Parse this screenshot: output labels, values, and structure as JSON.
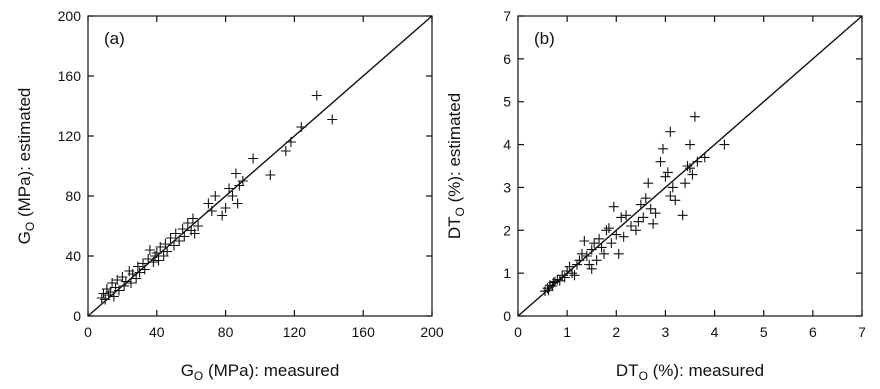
{
  "chart_data": [
    {
      "type": "scatter",
      "panel_label": "(a)",
      "xlabel": "G",
      "xlabel_sub": "O",
      "xlabel_rest": " (MPa): measured",
      "ylabel": "G",
      "ylabel_sub": "O",
      "ylabel_rest": " (MPa): estimated",
      "xlim": [
        0,
        200
      ],
      "ylim": [
        0,
        200
      ],
      "xticks": [
        "0",
        "40",
        "80",
        "120",
        "160",
        "200"
      ],
      "yticks": [
        "0",
        "40",
        "80",
        "120",
        "160",
        "200"
      ],
      "reference_line": "y = x",
      "grid": false,
      "series": [
        {
          "marker": "+",
          "points": [
            [
              8,
              12
            ],
            [
              9,
              15
            ],
            [
              10,
              11
            ],
            [
              11,
              18
            ],
            [
              12,
              14
            ],
            [
              13,
              16
            ],
            [
              14,
              22
            ],
            [
              15,
              13
            ],
            [
              16,
              19
            ],
            [
              17,
              24
            ],
            [
              18,
              17
            ],
            [
              20,
              26
            ],
            [
              21,
              20
            ],
            [
              22,
              23
            ],
            [
              24,
              30
            ],
            [
              25,
              22
            ],
            [
              26,
              28
            ],
            [
              28,
              25
            ],
            [
              29,
              33
            ],
            [
              30,
              29
            ],
            [
              32,
              35
            ],
            [
              33,
              31
            ],
            [
              35,
              38
            ],
            [
              36,
              44
            ],
            [
              38,
              36
            ],
            [
              39,
              40
            ],
            [
              40,
              42
            ],
            [
              41,
              37
            ],
            [
              42,
              46
            ],
            [
              44,
              40
            ],
            [
              45,
              48
            ],
            [
              46,
              43
            ],
            [
              48,
              52
            ],
            [
              50,
              47
            ],
            [
              51,
              55
            ],
            [
              53,
              50
            ],
            [
              55,
              58
            ],
            [
              56,
              53
            ],
            [
              58,
              62
            ],
            [
              60,
              57
            ],
            [
              61,
              65
            ],
            [
              62,
              55
            ],
            [
              64,
              60
            ],
            [
              70,
              75
            ],
            [
              72,
              70
            ],
            [
              74,
              80
            ],
            [
              78,
              67
            ],
            [
              80,
              72
            ],
            [
              82,
              85
            ],
            [
              84,
              80
            ],
            [
              86,
              95
            ],
            [
              87,
              75
            ],
            [
              88,
              87
            ],
            [
              90,
              90
            ],
            [
              96,
              105
            ],
            [
              106,
              94
            ],
            [
              115,
              110
            ],
            [
              118,
              116
            ],
            [
              124,
              126
            ],
            [
              133,
              147
            ],
            [
              142,
              131
            ]
          ]
        }
      ]
    },
    {
      "type": "scatter",
      "panel_label": "(b)",
      "xlabel": "DT",
      "xlabel_sub": "O",
      "xlabel_rest": " (%): measured",
      "ylabel": "DT",
      "ylabel_sub": "O",
      "ylabel_rest": " (%): estimated",
      "xlim": [
        0,
        7
      ],
      "ylim": [
        0,
        7
      ],
      "xticks": [
        "0",
        "1",
        "2",
        "3",
        "4",
        "5",
        "6",
        "7"
      ],
      "yticks": [
        "0",
        "1",
        "2",
        "3",
        "4",
        "5",
        "6",
        "7"
      ],
      "reference_line": "y = x",
      "grid": false,
      "series": [
        {
          "marker": "+",
          "points": [
            [
              0.55,
              0.58
            ],
            [
              0.6,
              0.65
            ],
            [
              0.62,
              0.6
            ],
            [
              0.65,
              0.72
            ],
            [
              0.7,
              0.7
            ],
            [
              0.72,
              0.78
            ],
            [
              0.75,
              0.8
            ],
            [
              0.8,
              0.85
            ],
            [
              0.85,
              0.82
            ],
            [
              0.9,
              0.95
            ],
            [
              0.95,
              0.9
            ],
            [
              1.0,
              1.05
            ],
            [
              1.05,
              1.15
            ],
            [
              1.1,
              1.0
            ],
            [
              1.15,
              0.95
            ],
            [
              1.2,
              1.2
            ],
            [
              1.25,
              1.3
            ],
            [
              1.3,
              1.45
            ],
            [
              1.35,
              1.75
            ],
            [
              1.4,
              1.4
            ],
            [
              1.45,
              1.2
            ],
            [
              1.5,
              1.1
            ],
            [
              1.5,
              1.55
            ],
            [
              1.55,
              1.7
            ],
            [
              1.6,
              1.3
            ],
            [
              1.65,
              1.8
            ],
            [
              1.7,
              1.6
            ],
            [
              1.75,
              1.45
            ],
            [
              1.8,
              2.0
            ],
            [
              1.85,
              2.05
            ],
            [
              1.9,
              1.7
            ],
            [
              1.95,
              2.55
            ],
            [
              2.0,
              1.9
            ],
            [
              2.05,
              1.45
            ],
            [
              2.1,
              2.3
            ],
            [
              2.15,
              1.85
            ],
            [
              2.2,
              2.35
            ],
            [
              2.3,
              2.1
            ],
            [
              2.4,
              2.0
            ],
            [
              2.45,
              2.2
            ],
            [
              2.5,
              2.6
            ],
            [
              2.55,
              2.3
            ],
            [
              2.6,
              2.75
            ],
            [
              2.65,
              3.1
            ],
            [
              2.7,
              2.5
            ],
            [
              2.75,
              2.15
            ],
            [
              2.8,
              2.4
            ],
            [
              2.9,
              3.6
            ],
            [
              2.95,
              3.9
            ],
            [
              3.0,
              3.25
            ],
            [
              3.05,
              3.35
            ],
            [
              3.1,
              4.3
            ],
            [
              3.1,
              2.8
            ],
            [
              3.15,
              3.0
            ],
            [
              3.2,
              2.7
            ],
            [
              3.35,
              2.35
            ],
            [
              3.4,
              3.1
            ],
            [
              3.45,
              3.5
            ],
            [
              3.5,
              3.45
            ],
            [
              3.55,
              3.3
            ],
            [
              3.6,
              4.65
            ],
            [
              3.65,
              3.6
            ],
            [
              3.8,
              3.7
            ],
            [
              4.2,
              4.0
            ],
            [
              3.5,
              4.0
            ]
          ]
        }
      ]
    }
  ]
}
